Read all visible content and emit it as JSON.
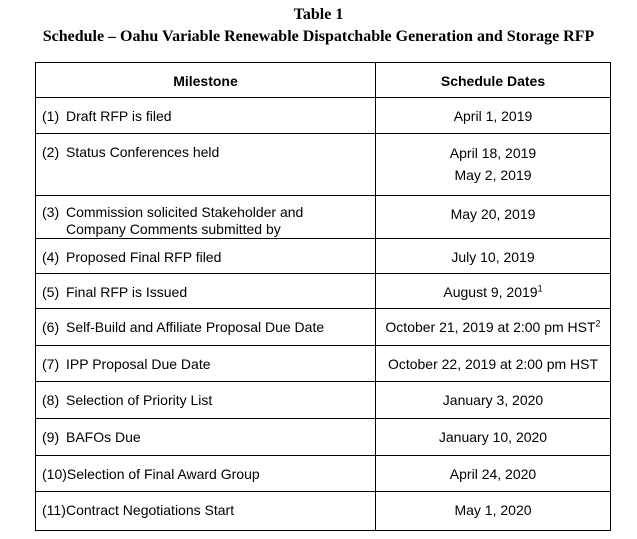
{
  "header": {
    "title": "Table 1",
    "subtitle": "Schedule – Oahu Variable Renewable Dispatchable Generation and Storage RFP"
  },
  "table": {
    "columns": [
      "Milestone",
      "Schedule Dates"
    ],
    "rows": [
      {
        "number": "(1)",
        "milestone": [
          "Draft RFP is filed"
        ],
        "dates": [
          "April 1, 2019"
        ]
      },
      {
        "number": "(2)",
        "milestone": [
          "Status Conferences held"
        ],
        "dates": [
          "April 18, 2019",
          "May 2, 2019"
        ]
      },
      {
        "number": "(3)",
        "milestone": [
          "Commission solicited Stakeholder and",
          "Company Comments submitted by"
        ],
        "dates": [
          "May 20, 2019"
        ]
      },
      {
        "number": "(4)",
        "milestone": [
          "Proposed Final RFP filed"
        ],
        "dates": [
          "July 10, 2019"
        ]
      },
      {
        "number": "(5)",
        "milestone": [
          "Final RFP is Issued"
        ],
        "dates": [
          "August 9, 2019"
        ],
        "note": "1"
      },
      {
        "number": "(6)",
        "milestone": [
          "Self-Build and Affiliate Proposal Due Date"
        ],
        "dates": [
          "October 21, 2019 at 2:00 pm HST"
        ],
        "note": "2"
      },
      {
        "number": "(7)",
        "milestone": [
          "IPP Proposal Due Date"
        ],
        "dates": [
          "October 22, 2019 at 2:00 pm HST"
        ]
      },
      {
        "number": "(8)",
        "milestone": [
          "Selection of Priority List"
        ],
        "dates": [
          "January 3, 2020"
        ]
      },
      {
        "number": "(9)",
        "milestone": [
          "BAFOs Due"
        ],
        "dates": [
          "January 10, 2020"
        ]
      },
      {
        "number": "(10)",
        "milestone": [
          "Selection of Final Award Group"
        ],
        "dates": [
          "April 24, 2020"
        ]
      },
      {
        "number": "(11)",
        "milestone": [
          "Contract Negotiations Start"
        ],
        "dates": [
          "May 1, 2020"
        ]
      }
    ]
  }
}
